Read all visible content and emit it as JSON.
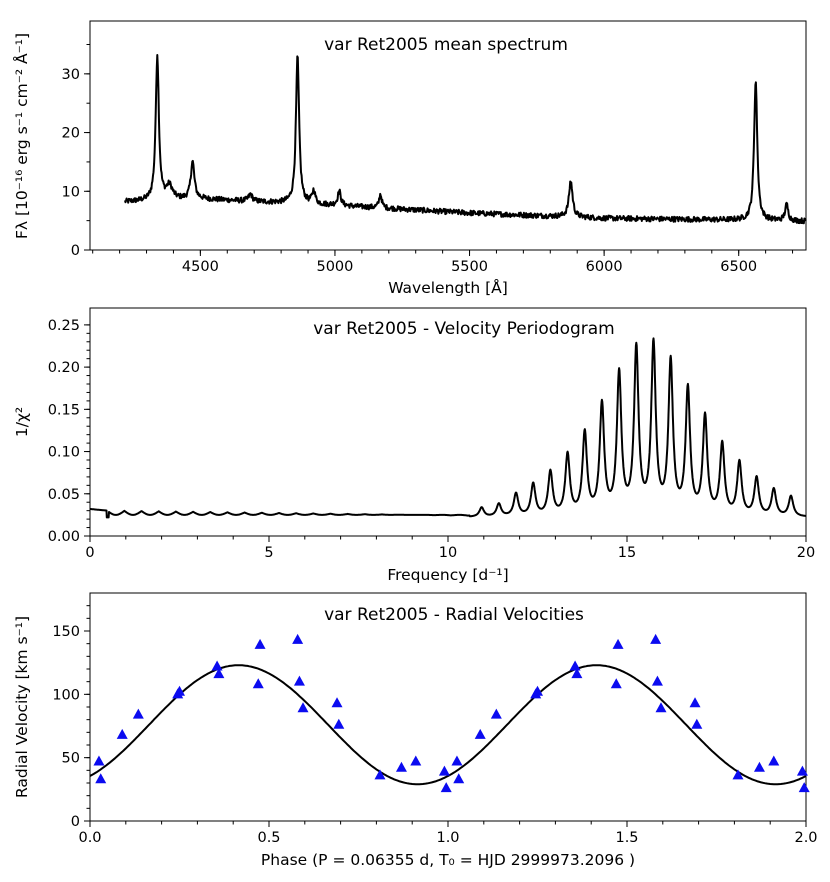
{
  "chart_data": [
    {
      "type": "line",
      "title": "var Ret2005 mean spectrum",
      "xlabel": "Wavelength [Å]",
      "ylabel": "Fλ [10⁻¹⁶ erg s⁻¹ cm⁻² Å⁻¹]",
      "xlim": [
        4090,
        6750
      ],
      "ylim": [
        0,
        39
      ],
      "xticks": [
        4500,
        5000,
        5500,
        6000,
        6500
      ],
      "xtick_labels": [
        "4500",
        "5000",
        "5500",
        "6000",
        "6500"
      ],
      "yticks": [
        0,
        10,
        20,
        30
      ],
      "ytick_labels": [
        "0",
        "10",
        "20",
        "30"
      ],
      "continuum": [
        [
          4220,
          8.2
        ],
        [
          4500,
          8.7
        ],
        [
          5000,
          7.6
        ],
        [
          5500,
          6.3
        ],
        [
          6000,
          5.4
        ],
        [
          6500,
          5.1
        ],
        [
          6750,
          4.9
        ]
      ],
      "emission_lines": [
        {
          "center": 4340,
          "peak": 33.2,
          "width": 7
        },
        {
          "center": 4385,
          "peak": 10.8,
          "width": 14
        },
        {
          "center": 4471,
          "peak": 15.0,
          "width": 8
        },
        {
          "center": 4686,
          "peak": 9.5,
          "width": 8
        },
        {
          "center": 4861,
          "peak": 33.0,
          "width": 7
        },
        {
          "center": 4921,
          "peak": 10.0,
          "width": 7
        },
        {
          "center": 5016,
          "peak": 10.0,
          "width": 7
        },
        {
          "center": 5169,
          "peak": 9.5,
          "width": 6
        },
        {
          "center": 5876,
          "peak": 11.8,
          "width": 8
        },
        {
          "center": 6563,
          "peak": 29.0,
          "width": 7
        },
        {
          "center": 6678,
          "peak": 7.7,
          "width": 7
        }
      ]
    },
    {
      "type": "line",
      "title": "var Ret2005 - Velocity Periodogram",
      "xlabel": "Frequency [d⁻¹]",
      "ylabel": "1/χ²",
      "xlim": [
        0,
        20
      ],
      "ylim": [
        0,
        0.27
      ],
      "xticks": [
        0,
        5,
        10,
        15,
        20
      ],
      "xtick_labels": [
        "0",
        "5",
        "10",
        "15",
        "20"
      ],
      "yticks": [
        0,
        0.05,
        0.1,
        0.15,
        0.2,
        0.25
      ],
      "ytick_labels": [
        "0.00",
        "0.05",
        "0.10",
        "0.15",
        "0.20",
        "0.25"
      ],
      "peak_spacing": 0.48,
      "peaks": [
        {
          "f": 10.94,
          "y": 0.033
        },
        {
          "f": 11.42,
          "y": 0.037
        },
        {
          "f": 11.9,
          "y": 0.049
        },
        {
          "f": 12.38,
          "y": 0.06
        },
        {
          "f": 12.86,
          "y": 0.074
        },
        {
          "f": 13.34,
          "y": 0.094
        },
        {
          "f": 13.82,
          "y": 0.119
        },
        {
          "f": 14.3,
          "y": 0.152
        },
        {
          "f": 14.78,
          "y": 0.188
        },
        {
          "f": 15.26,
          "y": 0.217
        },
        {
          "f": 15.74,
          "y": 0.222
        },
        {
          "f": 16.22,
          "y": 0.202
        },
        {
          "f": 16.7,
          "y": 0.17
        },
        {
          "f": 17.18,
          "y": 0.138
        },
        {
          "f": 17.66,
          "y": 0.106
        },
        {
          "f": 18.14,
          "y": 0.085
        },
        {
          "f": 18.62,
          "y": 0.067
        },
        {
          "f": 19.1,
          "y": 0.054
        },
        {
          "f": 19.58,
          "y": 0.046
        }
      ],
      "baseline": 0.022
    },
    {
      "type": "scatter",
      "title": "var Ret2005 - Radial Velocities",
      "xlabel": "Phase (P =  0.06355 d,  T₀ = HJD 2999973.2096 )",
      "ylabel": "Radial Velocity [km s⁻¹]",
      "xlim": [
        0,
        2
      ],
      "ylim": [
        0,
        180
      ],
      "xticks": [
        0,
        0.5,
        1.0,
        1.5,
        2.0
      ],
      "xtick_labels": [
        "0.0",
        "0.5",
        "1.0",
        "1.5",
        "2.0"
      ],
      "yticks": [
        0,
        50,
        100,
        150
      ],
      "ytick_labels": [
        "0",
        "50",
        "100",
        "150"
      ],
      "fit": {
        "gamma": 76,
        "K": 47,
        "phase_of_max": 0.415
      },
      "phase": [
        0.025,
        0.03,
        0.09,
        0.135,
        0.245,
        0.25,
        0.355,
        0.36,
        0.47,
        0.475,
        0.58,
        0.585,
        0.595,
        0.69,
        0.695,
        0.81,
        0.87,
        0.91,
        0.99,
        0.995,
        1.025,
        1.03,
        1.09,
        1.135,
        1.245,
        1.25,
        1.355,
        1.36,
        1.47,
        1.475,
        1.58,
        1.585,
        1.595,
        1.69,
        1.695,
        1.81,
        1.87,
        1.91,
        1.99,
        1.995
      ],
      "velocity": [
        47,
        33,
        68,
        84,
        100,
        102,
        122,
        116,
        108,
        139,
        143,
        110,
        89,
        93,
        76,
        36,
        42,
        47,
        39,
        26,
        47,
        33,
        68,
        84,
        100,
        102,
        122,
        116,
        108,
        139,
        143,
        110,
        89,
        93,
        76,
        36,
        42,
        47,
        39,
        26
      ]
    }
  ]
}
